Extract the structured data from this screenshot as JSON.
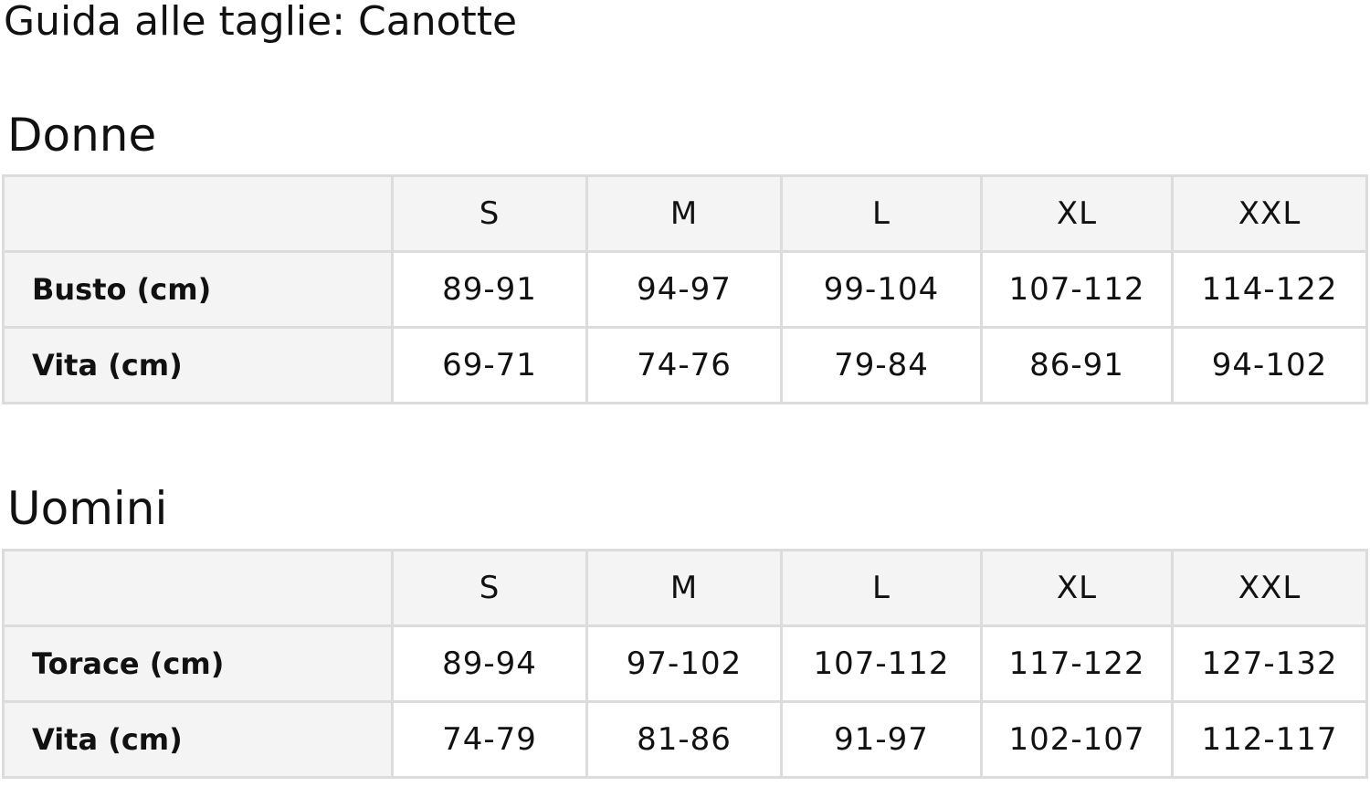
{
  "title": "Guida alle taglie: Canotte",
  "sections": [
    {
      "heading": "Donne",
      "sizes": [
        "S",
        "M",
        "L",
        "XL",
        "XXL"
      ],
      "rows": [
        {
          "label": "Busto (cm)",
          "values": [
            "89-91",
            "94-97",
            "99-104",
            "107-112",
            "114-122"
          ]
        },
        {
          "label": "Vita (cm)",
          "values": [
            "69-71",
            "74-76",
            "79-84",
            "86-91",
            "94-102"
          ]
        }
      ]
    },
    {
      "heading": "Uomini",
      "sizes": [
        "S",
        "M",
        "L",
        "XL",
        "XXL"
      ],
      "rows": [
        {
          "label": "Torace (cm)",
          "values": [
            "89-94",
            "97-102",
            "107-112",
            "117-122",
            "127-132"
          ]
        },
        {
          "label": "Vita (cm)",
          "values": [
            "74-79",
            "81-86",
            "91-97",
            "102-107",
            "112-117"
          ]
        }
      ]
    }
  ]
}
